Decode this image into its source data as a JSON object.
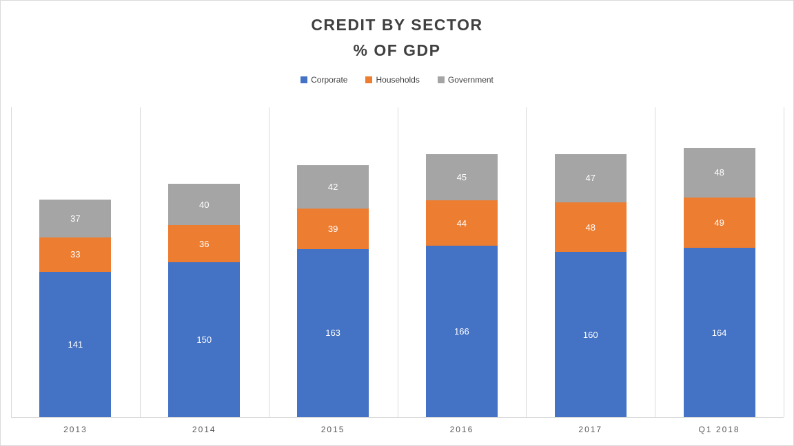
{
  "chart_data": {
    "type": "bar",
    "stacked": true,
    "title": "CREDIT BY SECTOR",
    "subtitle": "% OF GDP",
    "categories": [
      "2013",
      "2014",
      "2015",
      "2016",
      "2017",
      "Q1 2018"
    ],
    "series": [
      {
        "name": "Corporate",
        "color": "#4472C4",
        "values": [
          141,
          150,
          163,
          166,
          160,
          164
        ]
      },
      {
        "name": "Households",
        "color": "#ED7D31",
        "values": [
          33,
          36,
          39,
          44,
          48,
          49
        ]
      },
      {
        "name": "Government",
        "color": "#A5A5A5",
        "values": [
          37,
          40,
          42,
          45,
          47,
          48
        ]
      }
    ],
    "totals": [
      211,
      226,
      244,
      255,
      255,
      261
    ],
    "ylim": [
      0,
      300
    ],
    "y_axis_visible": false,
    "grid": "vertical category separators only",
    "legend_position": "top",
    "data_labels": "white, centered inside each segment"
  },
  "colors": {
    "title_text": "#404040",
    "legend_text": "#404040",
    "axis_text": "#595959",
    "gridline": "#d9d9d9",
    "frame_border": "#d9d9d9",
    "background": "#ffffff"
  }
}
